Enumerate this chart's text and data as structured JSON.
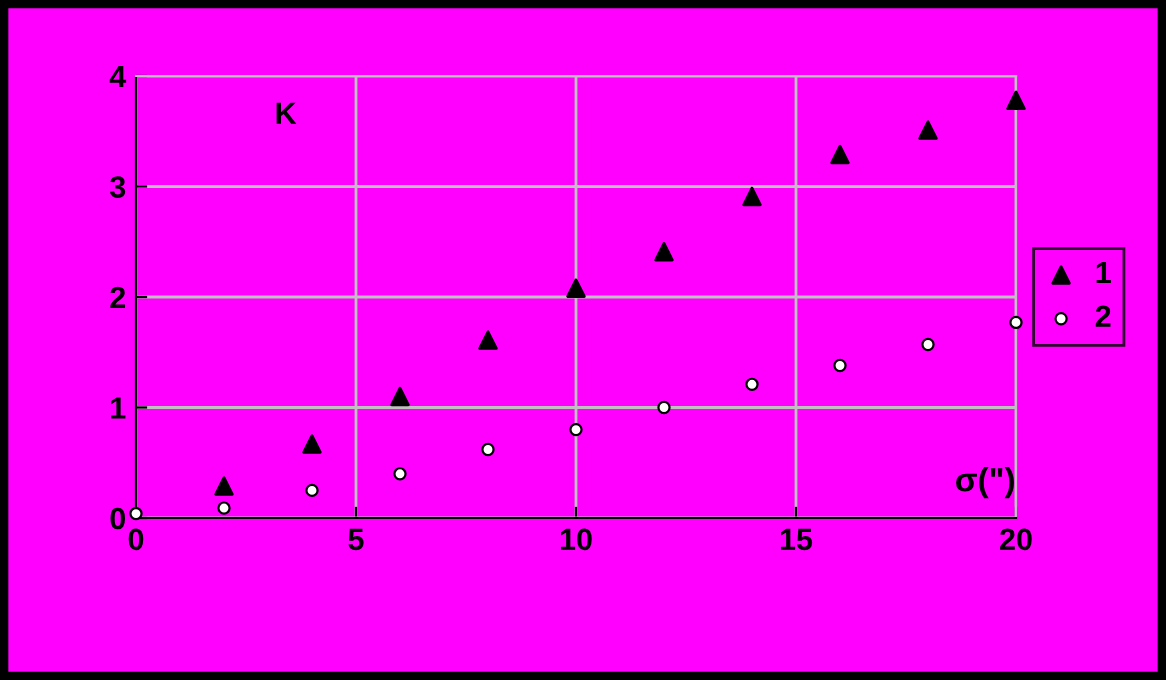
{
  "chart_data": {
    "type": "scatter",
    "xlabel": "σ(\")",
    "ylabel": "K",
    "xlim": [
      0,
      20
    ],
    "ylim": [
      0,
      4
    ],
    "xticks": [
      0,
      5,
      10,
      15,
      20
    ],
    "yticks": [
      0,
      1,
      2,
      3,
      4
    ],
    "grid": true,
    "legend": "right",
    "series": [
      {
        "name": "1",
        "color": "#000000",
        "marker": "triangle",
        "x": [
          2,
          4,
          6,
          8,
          10,
          12,
          14,
          16,
          18,
          20
        ],
        "values": [
          0.29,
          0.67,
          1.1,
          1.61,
          2.08,
          2.41,
          2.91,
          3.29,
          3.51,
          3.78
        ]
      },
      {
        "name": "2",
        "color": "#000000",
        "marker": "circle",
        "x": [
          0,
          2,
          4,
          6,
          8,
          10,
          12,
          14,
          16,
          18,
          20
        ],
        "values": [
          0.04,
          0.09,
          0.25,
          0.4,
          0.62,
          0.8,
          1.0,
          1.21,
          1.38,
          1.57,
          1.77
        ]
      }
    ]
  }
}
